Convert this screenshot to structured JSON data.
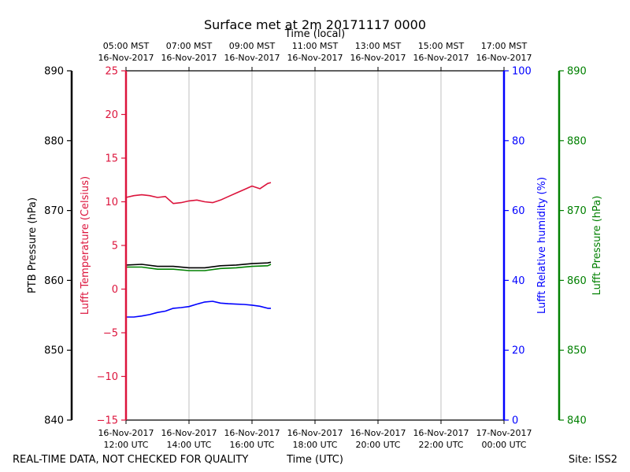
{
  "chart_data": {
    "type": "line",
    "title": "Surface met at 2m 20171117 0000",
    "top_axis_label": "Time (local)",
    "xlabel": "Time (UTC)",
    "footer_left": "REAL-TIME DATA, NOT CHECKED FOR QUALITY",
    "footer_right": "Site: ISS2",
    "xlim_hours": [
      0,
      12
    ],
    "bottom_ticks": [
      {
        "hour": 0,
        "line1": "16-Nov-2017",
        "line2": "12:00 UTC"
      },
      {
        "hour": 2,
        "line1": "16-Nov-2017",
        "line2": "14:00 UTC"
      },
      {
        "hour": 4,
        "line1": "16-Nov-2017",
        "line2": "16:00 UTC"
      },
      {
        "hour": 6,
        "line1": "16-Nov-2017",
        "line2": "18:00 UTC"
      },
      {
        "hour": 8,
        "line1": "16-Nov-2017",
        "line2": "20:00 UTC"
      },
      {
        "hour": 10,
        "line1": "16-Nov-2017",
        "line2": "22:00 UTC"
      },
      {
        "hour": 12,
        "line1": "17-Nov-2017",
        "line2": "00:00 UTC"
      }
    ],
    "top_ticks": [
      {
        "hour": 0,
        "line1": "05:00 MST",
        "line2": "16-Nov-2017"
      },
      {
        "hour": 2,
        "line1": "07:00 MST",
        "line2": "16-Nov-2017"
      },
      {
        "hour": 4,
        "line1": "09:00 MST",
        "line2": "16-Nov-2017"
      },
      {
        "hour": 6,
        "line1": "11:00 MST",
        "line2": "16-Nov-2017"
      },
      {
        "hour": 8,
        "line1": "13:00 MST",
        "line2": "16-Nov-2017"
      },
      {
        "hour": 10,
        "line1": "15:00 MST",
        "line2": "16-Nov-2017"
      },
      {
        "hour": 12,
        "line1": "17:00 MST",
        "line2": "16-Nov-2017"
      }
    ],
    "axes": {
      "ptb": {
        "label": "PTB Pressure (hPa)",
        "color": "#000000",
        "ylim": [
          840,
          890
        ],
        "ticks": [
          840,
          850,
          860,
          870,
          880,
          890
        ]
      },
      "temperature": {
        "label": "Lufft Temperature (Celsius)",
        "color": "#dc143c",
        "ylim": [
          -15,
          25
        ],
        "ticks": [
          -15,
          -10,
          -5,
          0,
          5,
          10,
          15,
          20,
          25
        ]
      },
      "humidity": {
        "label": "Lufft Relative humidity (%)",
        "color": "#0000ff",
        "ylim": [
          0,
          100
        ],
        "ticks": [
          0,
          20,
          40,
          60,
          80,
          100
        ]
      },
      "lufft_pressure": {
        "label": "Lufft Pressure (hPa)",
        "color": "#008000",
        "ylim": [
          840,
          890
        ],
        "ticks": [
          840,
          850,
          860,
          870,
          880,
          890
        ]
      }
    },
    "series": [
      {
        "name": "Lufft Temperature",
        "axis": "temperature",
        "color": "#dc143c",
        "x": [
          0,
          0.25,
          0.5,
          0.75,
          1.0,
          1.25,
          1.5,
          1.75,
          2.0,
          2.25,
          2.5,
          2.75,
          3.0,
          3.25,
          3.5,
          3.75,
          4.0,
          4.25,
          4.5,
          4.6
        ],
        "y": [
          10.5,
          10.7,
          10.8,
          10.7,
          10.5,
          10.6,
          9.8,
          9.9,
          10.1,
          10.2,
          10.0,
          9.9,
          10.2,
          10.6,
          11.0,
          11.4,
          11.8,
          11.5,
          12.1,
          12.2
        ]
      },
      {
        "name": "PTB Pressure",
        "axis": "ptb",
        "color": "#000000",
        "x": [
          0,
          0.5,
          1.0,
          1.5,
          2.0,
          2.5,
          3.0,
          3.5,
          4.0,
          4.5,
          4.6
        ],
        "y": [
          862.2,
          862.3,
          862.0,
          862.0,
          861.8,
          861.8,
          862.1,
          862.2,
          862.4,
          862.5,
          862.6
        ]
      },
      {
        "name": "Lufft Pressure",
        "axis": "lufft_pressure",
        "color": "#008000",
        "x": [
          0,
          0.5,
          1.0,
          1.5,
          2.0,
          2.5,
          3.0,
          3.5,
          4.0,
          4.5,
          4.6
        ],
        "y": [
          861.9,
          861.9,
          861.6,
          861.6,
          861.4,
          861.4,
          861.7,
          861.8,
          862.0,
          862.1,
          862.3
        ]
      },
      {
        "name": "Lufft Relative humidity",
        "axis": "humidity",
        "color": "#0000ff",
        "x": [
          0,
          0.25,
          0.5,
          0.75,
          1.0,
          1.25,
          1.5,
          1.75,
          2.0,
          2.25,
          2.5,
          2.75,
          3.0,
          3.25,
          3.5,
          3.75,
          4.0,
          4.25,
          4.5,
          4.6
        ],
        "y": [
          29.5,
          29.5,
          29.8,
          30.2,
          30.8,
          31.2,
          32.0,
          32.2,
          32.5,
          33.2,
          33.8,
          34.0,
          33.5,
          33.3,
          33.2,
          33.1,
          32.9,
          32.6,
          32.0,
          32.0
        ]
      }
    ]
  }
}
